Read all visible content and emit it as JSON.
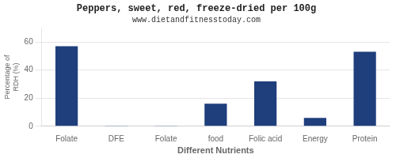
{
  "chart_data": {
    "type": "bar",
    "title": "Peppers, sweet, red, freeze-dried per 100g",
    "subtitle": "www.dietandfitnesstoday.com",
    "xlabel": "Different Nutrients",
    "ylabel": "Percentage of\nRDH (%)",
    "categories": [
      "Folate",
      "DFE",
      "Folate",
      "food",
      "Folic acid",
      "Energy",
      "Protein"
    ],
    "values": [
      57,
      0.5,
      0.5,
      16,
      32,
      6,
      53
    ],
    "color": "#1f3e7c",
    "ylim": [
      0,
      70
    ],
    "yticks": [
      0,
      20,
      40,
      60
    ],
    "grid": true
  }
}
